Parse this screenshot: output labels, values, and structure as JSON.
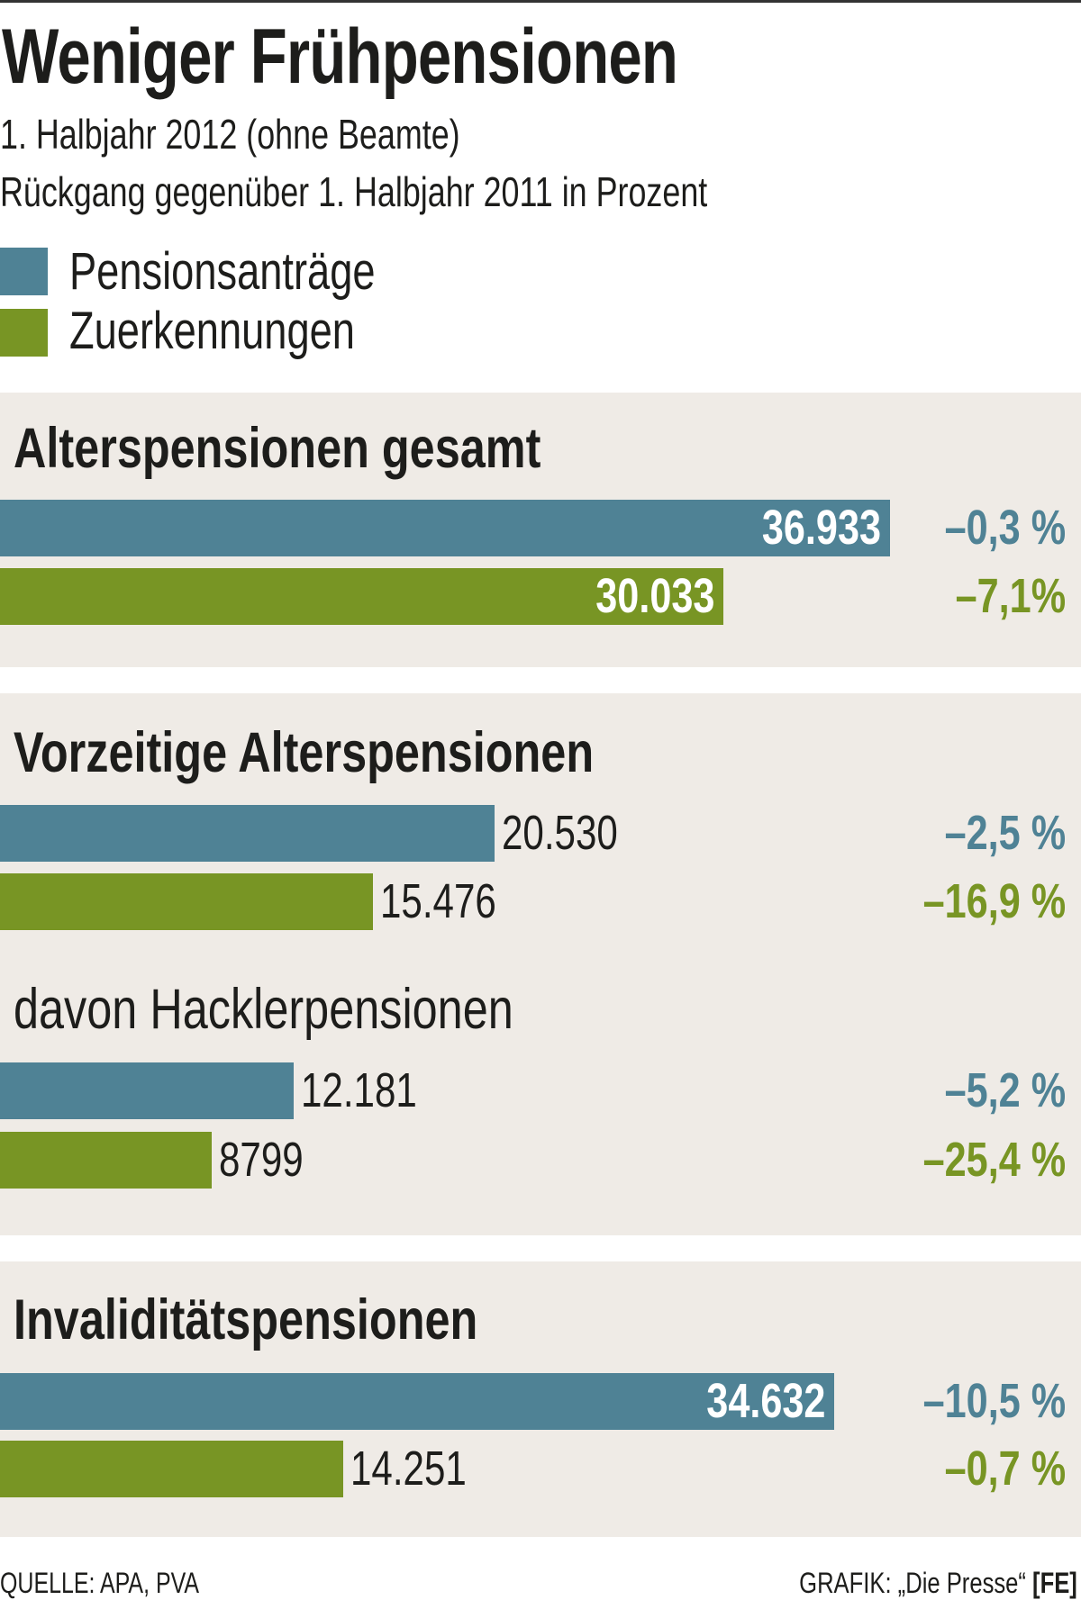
{
  "title": "Weniger Frühpensionen",
  "subtitle1": "1. Halbjahr 2012 (ohne Beamte)",
  "subtitle2": "Rückgang gegenüber 1. Halbjahr 2011 in Prozent",
  "colors": {
    "blue": "#4f8295",
    "green": "#789524",
    "panel": "#efebe6"
  },
  "legend": [
    {
      "label": "Pensionsanträge",
      "color": "#4f8295"
    },
    {
      "label": "Zuerkennungen",
      "color": "#789524"
    }
  ],
  "chart_data": {
    "type": "bar",
    "orientation": "horizontal",
    "title": "Weniger Frühpensionen",
    "series_names": [
      "Pensionsanträge",
      "Zuerkennungen"
    ],
    "groups": [
      {
        "heading": "Alterspensionen gesamt",
        "rows": [
          {
            "series": "Pensionsanträge",
            "value": 36933,
            "label": "36.933",
            "change": "–0,3 %"
          },
          {
            "series": "Zuerkennungen",
            "value": 30033,
            "label": "30.033",
            "change": "–7,1%"
          }
        ]
      },
      {
        "heading": "Vorzeitige Alterspensionen",
        "rows": [
          {
            "series": "Pensionsanträge",
            "value": 20530,
            "label": "20.530",
            "change": "–2,5 %"
          },
          {
            "series": "Zuerkennungen",
            "value": 15476,
            "label": "15.476",
            "change": "–16,9 %"
          }
        ]
      },
      {
        "heading": "davon Hacklerpensionen",
        "rows": [
          {
            "series": "Pensionsanträge",
            "value": 12181,
            "label": "12.181",
            "change": "–5,2 %"
          },
          {
            "series": "Zuerkennungen",
            "value": 8799,
            "label": "8799",
            "change": "–25,4 %"
          }
        ]
      },
      {
        "heading": "Invaliditätspensionen",
        "rows": [
          {
            "series": "Pensionsanträge",
            "value": 34632,
            "label": "34.632",
            "change": "–10,5 %"
          },
          {
            "series": "Zuerkennungen",
            "value": 14251,
            "label": "14.251",
            "change": "–0,7 %"
          }
        ]
      }
    ]
  },
  "footer": {
    "source": "QUELLE: APA, PVA",
    "credit": "GRAFIK: „Die Presse“",
    "credit_tag": "[FE]"
  }
}
